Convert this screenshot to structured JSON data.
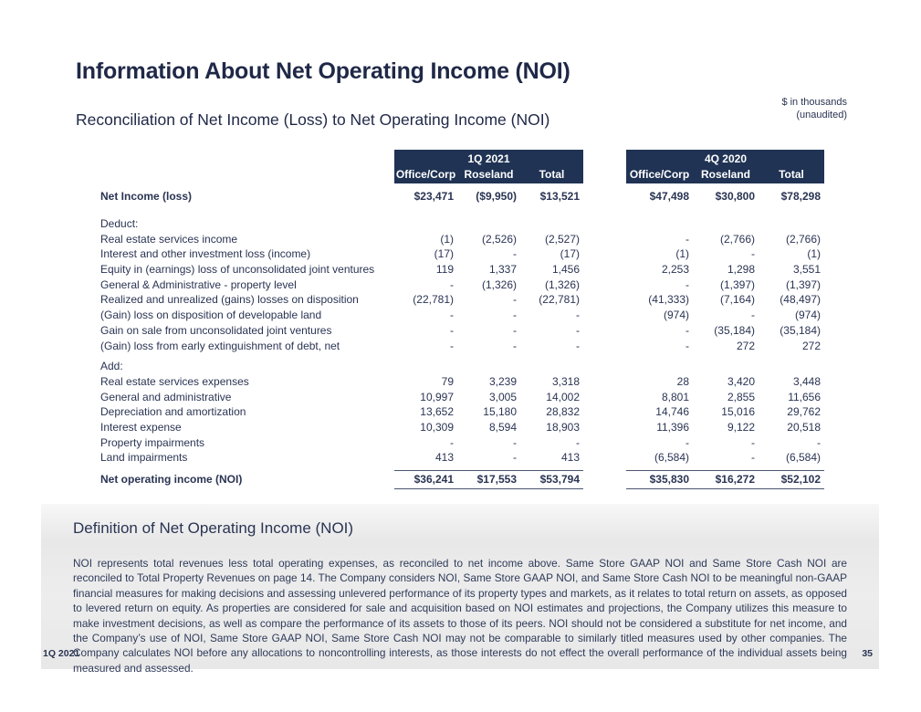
{
  "slide": {
    "title": "Information About Net Operating Income (NOI)",
    "subtitle": "Reconciliation of Net Income (Loss) to Net Operating Income (NOI)",
    "units_note_line1": "$ in thousands",
    "units_note_line2": "(unaudited)",
    "footer_left": "1Q 2021",
    "page_number": "35"
  },
  "colors": {
    "navy_text": "#2a3453",
    "title_navy": "#1f2847",
    "header_background": "#203354",
    "header_text": "#ffffff",
    "definition_box_grey": "#e8e8e8"
  },
  "table": {
    "groups": [
      {
        "period": "1Q 2021",
        "columns": [
          "Office/Corp",
          "Roseland",
          "Total"
        ]
      },
      {
        "period": "4Q 2020",
        "columns": [
          "Office/Corp",
          "Roseland",
          "Total"
        ]
      }
    ],
    "net_income_row": {
      "label": "Net Income (loss)",
      "values": [
        "$23,471",
        "($9,950)",
        "$13,521",
        "$47,498",
        "$30,800",
        "$78,298"
      ]
    },
    "deduct_label": "Deduct:",
    "deduct_rows": [
      [
        "Real estate services income",
        "(1)",
        "(2,526)",
        "(2,527)",
        "-",
        "(2,766)",
        "(2,766)"
      ],
      [
        "Interest and other investment loss (income)",
        "(17)",
        "-",
        "(17)",
        "(1)",
        "-",
        "(1)"
      ],
      [
        "Equity in (earnings) loss of unconsolidated joint ventures",
        "119",
        "1,337",
        "1,456",
        "2,253",
        "1,298",
        "3,551"
      ],
      [
        "General & Administrative - property level",
        "-",
        "(1,326)",
        "(1,326)",
        "-",
        "(1,397)",
        "(1,397)"
      ],
      [
        "Realized and unrealized (gains) losses on disposition",
        "(22,781)",
        "-",
        "(22,781)",
        "(41,333)",
        "(7,164)",
        "(48,497)"
      ],
      [
        "(Gain) loss on disposition of developable land",
        "-",
        "-",
        "-",
        "(974)",
        "-",
        "(974)"
      ],
      [
        "Gain on sale from unconsolidated joint ventures",
        "-",
        "-",
        "-",
        "-",
        "(35,184)",
        "(35,184)"
      ],
      [
        "(Gain) loss from early extinguishment of debt, net",
        "-",
        "-",
        "-",
        "-",
        "272",
        "272"
      ]
    ],
    "add_label": "Add:",
    "add_rows": [
      [
        "Real estate services expenses",
        "79",
        "3,239",
        "3,318",
        "28",
        "3,420",
        "3,448"
      ],
      [
        "General and administrative",
        "10,997",
        "3,005",
        "14,002",
        "8,801",
        "2,855",
        "11,656"
      ],
      [
        "Depreciation and amortization",
        "13,652",
        "15,180",
        "28,832",
        "14,746",
        "15,016",
        "29,762"
      ],
      [
        "Interest expense",
        "10,309",
        "8,594",
        "18,903",
        "11,396",
        "9,122",
        "20,518"
      ],
      [
        "Property impairments",
        "-",
        "-",
        "-",
        "-",
        "-",
        "-"
      ],
      [
        "Land impairments",
        "413",
        "-",
        "413",
        "(6,584)",
        "-",
        "(6,584)"
      ]
    ],
    "noi_row": {
      "label": "Net operating income (NOI)",
      "values": [
        "$36,241",
        "$17,553",
        "$53,794",
        "$35,830",
        "$16,272",
        "$52,102"
      ]
    }
  },
  "definition": {
    "heading": "Definition of Net Operating Income (NOI)",
    "body": "NOI represents total revenues less total operating expenses, as reconciled to net income above. Same Store GAAP NOI and Same Store Cash NOI are reconciled to Total Property Revenues on page 14. The Company considers NOI, Same Store GAAP NOI, and Same Store Cash NOI to be meaningful non-GAAP financial measures for making decisions and assessing unlevered performance of its property types and markets, as it relates to total return on assets, as opposed to levered return on equity.  As properties are considered for sale and acquisition based on NOI estimates and projections, the Company utilizes this measure to make investment decisions, as well as compare the performance of its assets to those of its peers.  NOI should not be considered a substitute for net income, and the Company’s use of NOI, Same Store GAAP NOI, Same Store Cash NOI may not be comparable to similarly titled measures used by other companies.  The Company calculates NOI before any allocations to noncontrolling interests, as those interests do not effect the overall performance of the individual assets being measured and assessed."
  }
}
